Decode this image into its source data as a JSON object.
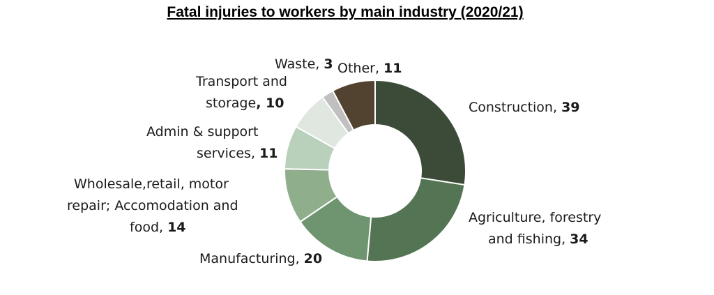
{
  "chart_data": {
    "type": "pie",
    "title": "Fatal injuries to workers by main industry (2020/21)",
    "categories": [
      "Construction",
      "Agriculture, forestry and fishing",
      "Manufacturing",
      "Wholesale,retail, motor repair; Accomodation and food",
      "Admin & support services",
      "Transport and storage",
      "Waste",
      "Other"
    ],
    "values": [
      39,
      34,
      20,
      14,
      11,
      10,
      3,
      11
    ],
    "colors": [
      "#3b4b38",
      "#547553",
      "#6f9570",
      "#8fae8c",
      "#b9d0bb",
      "#e0e6e0",
      "#c0c0c0",
      "#51432f"
    ],
    "labels": [
      {
        "lines": [
          "Construction, "
        ],
        "value": "39"
      },
      {
        "lines": [
          "Agriculture, forestry",
          "and fishing, "
        ],
        "value": "34"
      },
      {
        "lines": [
          "Manufacturing, "
        ],
        "value": "20"
      },
      {
        "lines": [
          "Wholesale,retail, motor",
          "repair; Accomodation and",
          "food, "
        ],
        "value": "14"
      },
      {
        "lines": [
          "Admin & support",
          "services, "
        ],
        "value": "11"
      },
      {
        "lines": [
          "Transport and",
          "storage"
        ],
        "value": ", 10"
      },
      {
        "lines": [
          "Waste, "
        ],
        "value": "3"
      },
      {
        "lines": [
          "Other, "
        ],
        "value": "11"
      }
    ]
  }
}
